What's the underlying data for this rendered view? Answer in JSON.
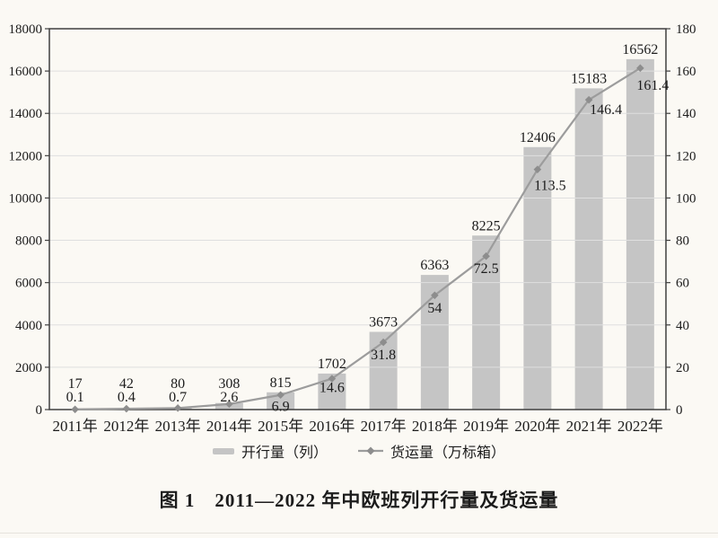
{
  "page": {
    "background": "#fbf9f4"
  },
  "chart_data": {
    "type": "combo",
    "title": "",
    "categories": [
      "2011年",
      "2012年",
      "2013年",
      "2014年",
      "2015年",
      "2016年",
      "2017年",
      "2018年",
      "2019年",
      "2020年",
      "2021年",
      "2022年"
    ],
    "series": [
      {
        "name": "开行量（列）",
        "type": "bar",
        "axis": "left",
        "color": "#c5c5c5",
        "values": [
          17,
          42,
          80,
          308,
          815,
          1702,
          3673,
          6363,
          8225,
          12406,
          15183,
          16562
        ]
      },
      {
        "name": "货运量（万标箱）",
        "type": "line",
        "axis": "right",
        "color": "#9c9c9c",
        "marker": "diamond",
        "marker_color": "#8d8d8d",
        "values": [
          0.1,
          0.4,
          0.7,
          2.6,
          6.9,
          14.6,
          31.8,
          54,
          72.5,
          113.5,
          146.4,
          161.4
        ]
      }
    ],
    "left_axis": {
      "min": 0,
      "max": 18000,
      "step": 2000,
      "tick_labels": [
        "0",
        "2000",
        "4000",
        "6000",
        "8000",
        "10000",
        "12000",
        "14000",
        "16000",
        "18000"
      ]
    },
    "right_axis": {
      "min": 0,
      "max": 180,
      "step": 20,
      "tick_labels": [
        "0",
        "20",
        "40",
        "60",
        "80",
        "100",
        "120",
        "140",
        "160",
        "180"
      ]
    },
    "grid": true,
    "grid_color": "#dfdfdf",
    "frame_color": "#3f3f3f",
    "text_color": "#1c1c1c",
    "legend_position": "bottom"
  },
  "caption": {
    "text": "图 1　2011—2022 年中欧班列开行量及货运量"
  }
}
